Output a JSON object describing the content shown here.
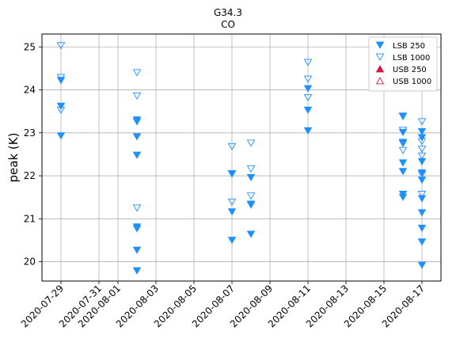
{
  "chart_data": {
    "type": "scatter",
    "title": "G34.3",
    "subtitle": "CO",
    "xlabel": "",
    "ylabel": "peak (K)",
    "ylim": [
      19.55,
      25.3
    ],
    "xlim": [
      "2020-07-28T00:00",
      "2020-08-18T00:00"
    ],
    "grid": true,
    "legend_position": "top-right",
    "x_ticks": [
      "2020-07-29",
      "2020-07-31",
      "2020-08-01",
      "2020-08-03",
      "2020-08-05",
      "2020-08-07",
      "2020-08-09",
      "2020-08-11",
      "2020-08-13",
      "2020-08-15",
      "2020-08-17"
    ],
    "y_ticks": [
      20,
      21,
      22,
      23,
      24,
      25
    ],
    "series": [
      {
        "name": "LSB 250",
        "marker": "triangle-down-filled",
        "color": "#1e90ff",
        "points": [
          {
            "x": "2020-07-29T00:00",
            "y": 24.22
          },
          {
            "x": "2020-07-29T00:00",
            "y": 23.62
          },
          {
            "x": "2020-07-29T00:00",
            "y": 22.93
          },
          {
            "x": "2020-08-02T00:00",
            "y": 23.3
          },
          {
            "x": "2020-08-02T00:00",
            "y": 23.26
          },
          {
            "x": "2020-08-02T00:00",
            "y": 22.91
          },
          {
            "x": "2020-08-02T00:00",
            "y": 22.48
          },
          {
            "x": "2020-08-02T00:00",
            "y": 20.81
          },
          {
            "x": "2020-08-02T00:00",
            "y": 20.77
          },
          {
            "x": "2020-08-02T00:00",
            "y": 20.27
          },
          {
            "x": "2020-08-02T00:00",
            "y": 19.79
          },
          {
            "x": "2020-08-07T00:00",
            "y": 22.05
          },
          {
            "x": "2020-08-07T00:00",
            "y": 21.16
          },
          {
            "x": "2020-08-07T00:00",
            "y": 20.5
          },
          {
            "x": "2020-08-08T00:00",
            "y": 21.96
          },
          {
            "x": "2020-08-08T00:00",
            "y": 21.34
          },
          {
            "x": "2020-08-08T00:00",
            "y": 21.32
          },
          {
            "x": "2020-08-08T00:00",
            "y": 20.64
          },
          {
            "x": "2020-08-11T00:00",
            "y": 24.03
          },
          {
            "x": "2020-08-11T00:00",
            "y": 23.53
          },
          {
            "x": "2020-08-11T00:00",
            "y": 23.05
          },
          {
            "x": "2020-08-16T00:00",
            "y": 23.38
          },
          {
            "x": "2020-08-16T00:00",
            "y": 23.01
          },
          {
            "x": "2020-08-16T00:00",
            "y": 22.78
          },
          {
            "x": "2020-08-16T00:00",
            "y": 22.75
          },
          {
            "x": "2020-08-16T00:00",
            "y": 22.3
          },
          {
            "x": "2020-08-16T00:00",
            "y": 22.1
          },
          {
            "x": "2020-08-16T00:00",
            "y": 21.57
          },
          {
            "x": "2020-08-16T00:00",
            "y": 21.5
          },
          {
            "x": "2020-08-17T00:00",
            "y": 23.03
          },
          {
            "x": "2020-08-17T00:00",
            "y": 22.89
          },
          {
            "x": "2020-08-17T00:00",
            "y": 22.33
          },
          {
            "x": "2020-08-17T00:00",
            "y": 22.07
          },
          {
            "x": "2020-08-17T00:00",
            "y": 21.9
          },
          {
            "x": "2020-08-17T00:00",
            "y": 21.47
          },
          {
            "x": "2020-08-17T00:00",
            "y": 21.14
          },
          {
            "x": "2020-08-17T00:00",
            "y": 20.78
          },
          {
            "x": "2020-08-17T00:00",
            "y": 20.46
          },
          {
            "x": "2020-08-17T00:00",
            "y": 19.92
          }
        ]
      },
      {
        "name": "LSB 1000",
        "marker": "triangle-down-open",
        "color": "#1e90ff",
        "points": [
          {
            "x": "2020-07-29T00:00",
            "y": 25.03
          },
          {
            "x": "2020-07-29T00:00",
            "y": 24.29
          },
          {
            "x": "2020-07-29T00:00",
            "y": 23.53
          },
          {
            "x": "2020-08-02T00:00",
            "y": 24.4
          },
          {
            "x": "2020-08-02T00:00",
            "y": 23.86
          },
          {
            "x": "2020-08-02T00:00",
            "y": 21.25
          },
          {
            "x": "2020-08-07T00:00",
            "y": 22.68
          },
          {
            "x": "2020-08-07T00:00",
            "y": 22.04
          },
          {
            "x": "2020-08-07T00:00",
            "y": 21.39
          },
          {
            "x": "2020-08-08T00:00",
            "y": 22.76
          },
          {
            "x": "2020-08-08T00:00",
            "y": 22.16
          },
          {
            "x": "2020-08-08T00:00",
            "y": 21.53
          },
          {
            "x": "2020-08-11T00:00",
            "y": 24.64
          },
          {
            "x": "2020-08-11T00:00",
            "y": 24.25
          },
          {
            "x": "2020-08-11T00:00",
            "y": 23.82
          },
          {
            "x": "2020-08-16T00:00",
            "y": 23.39
          },
          {
            "x": "2020-08-16T00:00",
            "y": 23.06
          },
          {
            "x": "2020-08-16T00:00",
            "y": 22.59
          },
          {
            "x": "2020-08-17T00:00",
            "y": 23.26
          },
          {
            "x": "2020-08-17T00:00",
            "y": 22.8
          },
          {
            "x": "2020-08-17T00:00",
            "y": 22.62
          },
          {
            "x": "2020-08-17T00:00",
            "y": 22.46
          },
          {
            "x": "2020-08-17T00:00",
            "y": 22.03
          },
          {
            "x": "2020-08-17T00:00",
            "y": 21.57
          }
        ]
      },
      {
        "name": "USB 250",
        "marker": "triangle-up-filled",
        "color": "#dc143c",
        "points": []
      },
      {
        "name": "USB 1000",
        "marker": "triangle-up-open",
        "color": "#dc143c",
        "points": []
      }
    ]
  }
}
